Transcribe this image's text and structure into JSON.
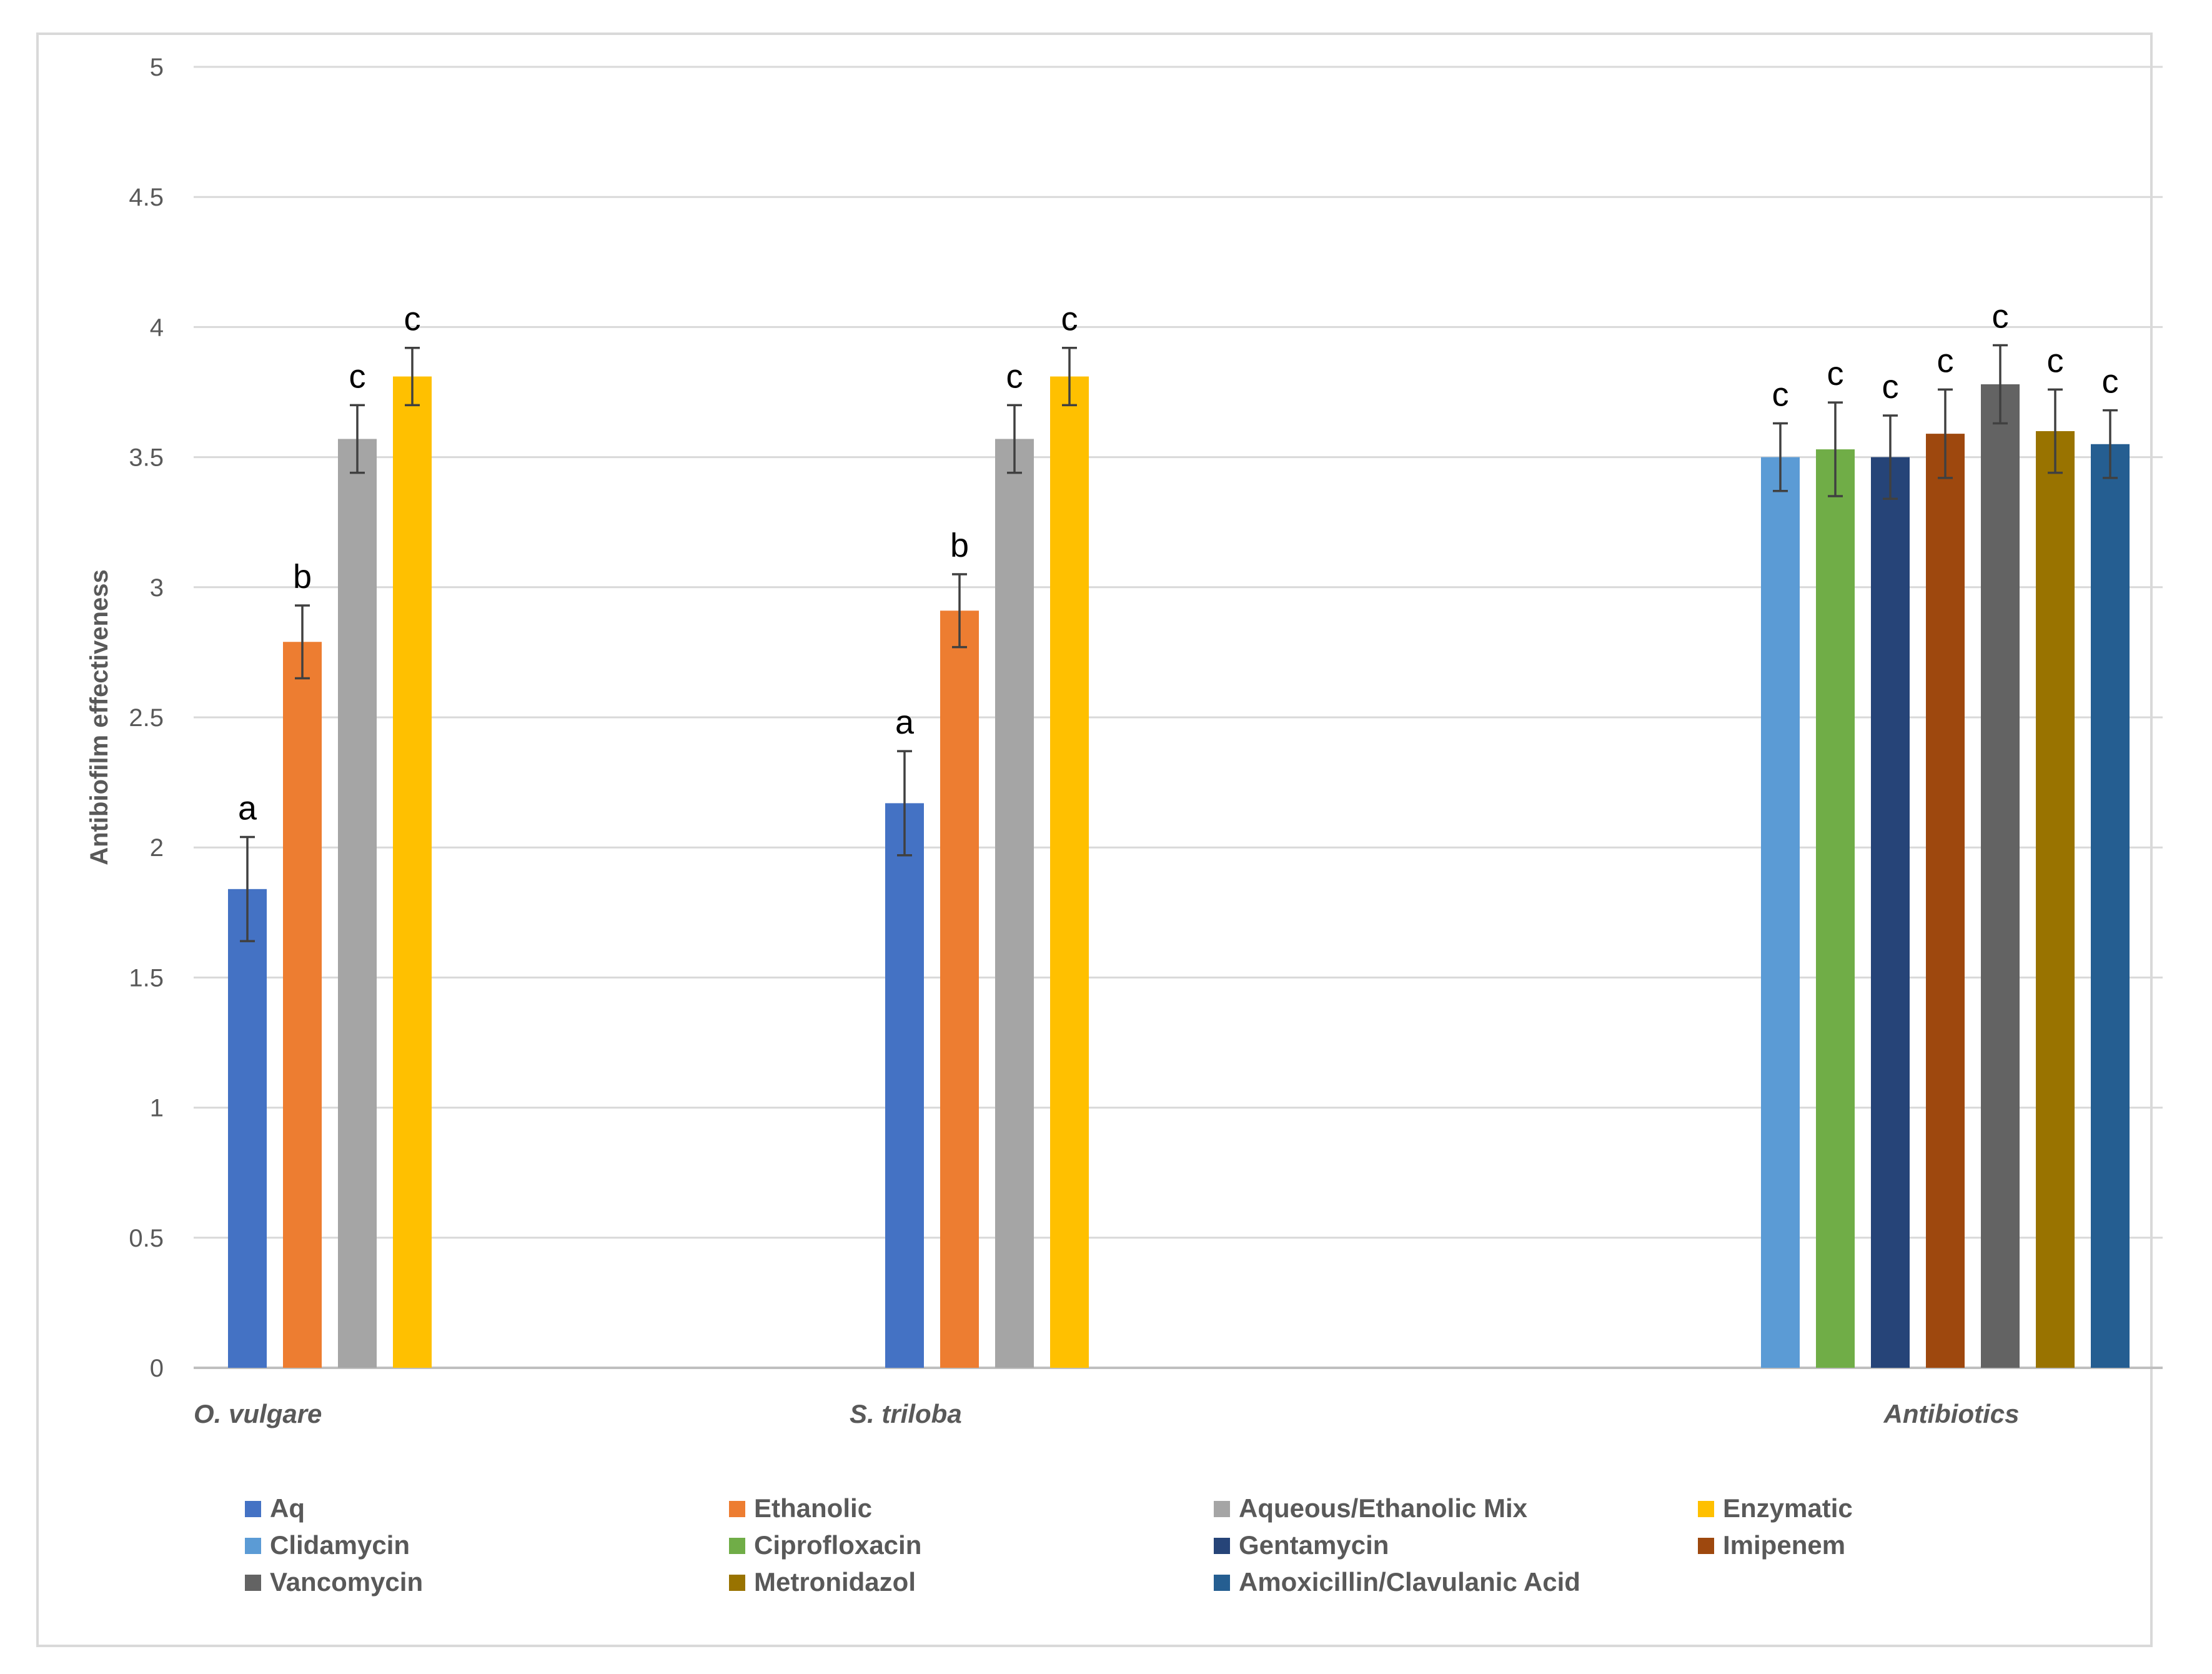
{
  "chart_data": {
    "type": "bar",
    "title": "",
    "xlabel": "",
    "ylabel": "Antibiofilm effectiveness",
    "ylim": [
      0,
      5
    ],
    "yticks": [
      "0",
      "0.5",
      "1",
      "1.5",
      "2",
      "2.5",
      "3",
      "3.5",
      "4",
      "4.5",
      "5"
    ],
    "grid": true,
    "legend_position": "bottom",
    "categories": [
      "O. vulgare",
      "S. triloba",
      "Antibiotics"
    ],
    "series": [
      {
        "name": "Aq",
        "color": "#4472C4",
        "values": [
          1.84,
          2.17,
          null
        ],
        "errors": [
          0.2,
          0.2,
          null
        ],
        "labels": [
          "a",
          "a",
          ""
        ]
      },
      {
        "name": "Ethanolic",
        "color": "#ED7D31",
        "values": [
          2.79,
          2.91,
          null
        ],
        "errors": [
          0.14,
          0.14,
          null
        ],
        "labels": [
          "b",
          "b",
          ""
        ]
      },
      {
        "name": "Aqueous/Ethanolic Mix",
        "color": "#A5A5A5",
        "values": [
          3.57,
          3.57,
          null
        ],
        "errors": [
          0.13,
          0.13,
          null
        ],
        "labels": [
          "c",
          "c",
          ""
        ]
      },
      {
        "name": "Enzymatic",
        "color": "#FFC000",
        "values": [
          3.81,
          3.81,
          null
        ],
        "errors": [
          0.11,
          0.11,
          null
        ],
        "labels": [
          "c",
          "c",
          ""
        ]
      },
      {
        "name": "Clidamycin",
        "color": "#5B9BD5",
        "values": [
          null,
          null,
          3.5
        ],
        "errors": [
          null,
          null,
          0.13
        ],
        "labels": [
          "",
          "",
          "c"
        ]
      },
      {
        "name": "Ciprofloxacin",
        "color": "#70AD47",
        "values": [
          null,
          null,
          3.53
        ],
        "errors": [
          null,
          null,
          0.18
        ],
        "labels": [
          "",
          "",
          "c"
        ]
      },
      {
        "name": "Gentamycin",
        "color": "#264478",
        "values": [
          null,
          null,
          3.5
        ],
        "errors": [
          null,
          null,
          0.16
        ],
        "labels": [
          "",
          "",
          "c"
        ]
      },
      {
        "name": "Imipenem",
        "color": "#9E480E",
        "values": [
          null,
          null,
          3.59
        ],
        "errors": [
          null,
          null,
          0.17
        ],
        "labels": [
          "",
          "",
          "c"
        ]
      },
      {
        "name": "Vancomycin",
        "color": "#636363",
        "values": [
          null,
          null,
          3.78
        ],
        "errors": [
          null,
          null,
          0.15
        ],
        "labels": [
          "",
          "",
          "c"
        ]
      },
      {
        "name": "Metronidazol",
        "color": "#997300",
        "values": [
          null,
          null,
          3.6
        ],
        "errors": [
          null,
          null,
          0.16
        ],
        "labels": [
          "",
          "",
          "c"
        ]
      },
      {
        "name": "Amoxicillin/Clavulanic Acid",
        "color": "#255E91",
        "values": [
          null,
          null,
          3.55
        ],
        "errors": [
          null,
          null,
          0.13
        ],
        "labels": [
          "",
          "",
          "c"
        ]
      }
    ]
  }
}
